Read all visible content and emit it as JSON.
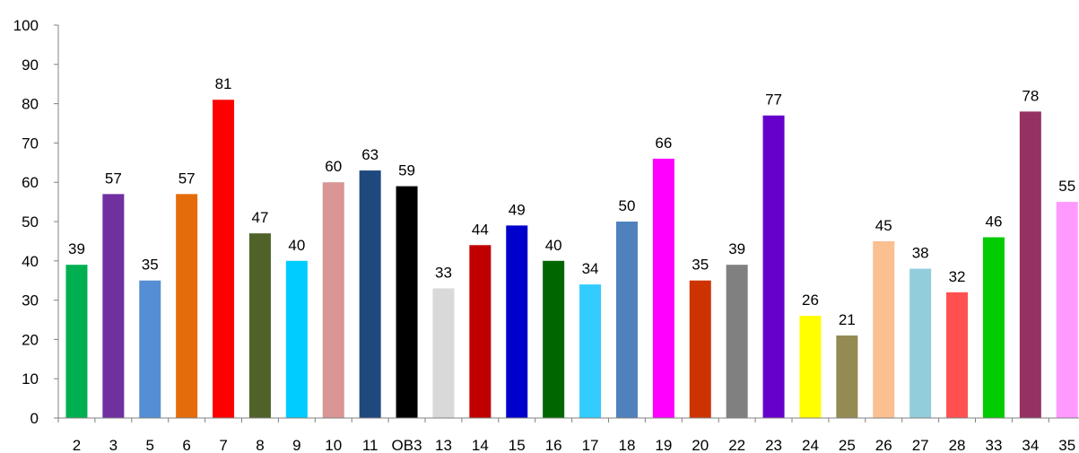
{
  "chart_data": {
    "type": "bar",
    "title": "",
    "xlabel": "",
    "ylabel": "",
    "ylim": [
      0,
      100
    ],
    "yticks": [
      0,
      10,
      20,
      30,
      40,
      50,
      60,
      70,
      80,
      90,
      100
    ],
    "grid": false,
    "categories": [
      "2",
      "3",
      "5",
      "6",
      "7",
      "8",
      "9",
      "10",
      "11",
      "OB3",
      "13",
      "14",
      "15",
      "16",
      "17",
      "18",
      "19",
      "20",
      "22",
      "23",
      "24",
      "25",
      "26",
      "27",
      "28",
      "33",
      "34",
      "35"
    ],
    "values": [
      39,
      57,
      35,
      57,
      81,
      47,
      40,
      60,
      63,
      59,
      33,
      44,
      49,
      40,
      34,
      50,
      66,
      35,
      39,
      77,
      26,
      21,
      45,
      38,
      32,
      46,
      78,
      55
    ],
    "colors": [
      "#00b050",
      "#7030a0",
      "#558ed5",
      "#e46c0a",
      "#ff0000",
      "#4f6228",
      "#00ccff",
      "#d99694",
      "#1f497d",
      "#000000",
      "#d9d9d9",
      "#c00000",
      "#0000cc",
      "#006600",
      "#33ccff",
      "#4f81bd",
      "#ff00ff",
      "#cc3300",
      "#808080",
      "#6600cc",
      "#ffff00",
      "#948a54",
      "#fac090",
      "#92cddc",
      "#ff5050",
      "#00cc00",
      "#953163",
      "#ff99ff"
    ]
  }
}
